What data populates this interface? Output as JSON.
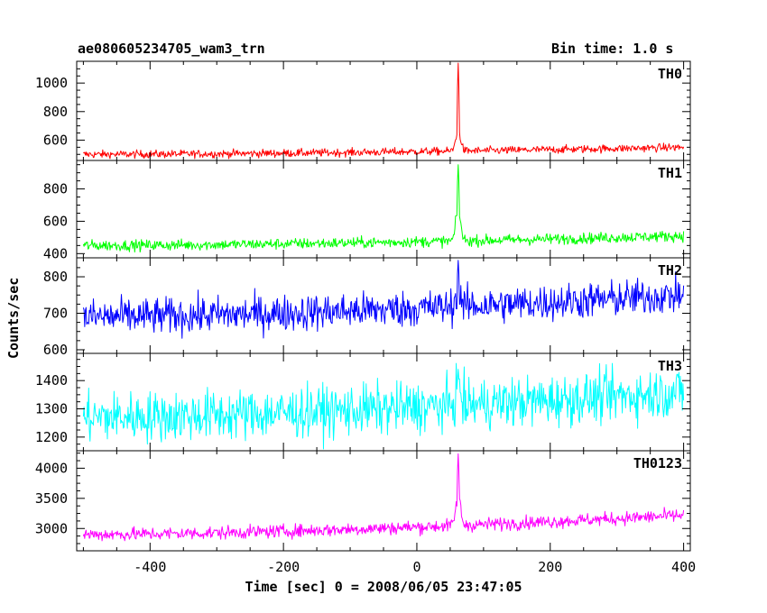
{
  "header": {
    "title": "ae080605234705_wam3_trn",
    "bin_time": "Bin time: 1.0 s"
  },
  "chart_data": {
    "type": "line",
    "xlabel": "Time [sec] 0 = 2008/06/05 23:47:05",
    "ylabel": "Counts/sec",
    "xlim": [
      -510,
      410
    ],
    "x_ticks": [
      -400,
      -200,
      0,
      200,
      400
    ],
    "x_range": [
      -500,
      400
    ],
    "burst_peak_time": 62,
    "panels": [
      {
        "name": "TH0",
        "color": "#ff0000",
        "ylim": [
          470,
          1140
        ],
        "y_ticks": [
          600,
          800,
          1000
        ],
        "baseline_start": 500,
        "baseline_end": 550,
        "noise": 14,
        "peak": 1140,
        "shoulder": 650
      },
      {
        "name": "TH1",
        "color": "#00ff00",
        "ylim": [
          385,
          965
        ],
        "y_ticks": [
          400,
          600,
          800
        ],
        "baseline_start": 450,
        "baseline_end": 510,
        "noise": 17,
        "peak": 950,
        "shoulder": 650
      },
      {
        "name": "TH2",
        "color": "#0000ff",
        "ylim": [
          595,
          847
        ],
        "y_ticks": [
          600,
          700,
          800
        ],
        "baseline_start": 690,
        "baseline_end": 750,
        "noise": 25,
        "peak": 845,
        "shoulder": 740
      },
      {
        "name": "TH3",
        "color": "#00ffff",
        "ylim": [
          1158,
          1490
        ],
        "y_ticks": [
          1200,
          1300,
          1400
        ],
        "baseline_start": 1270,
        "baseline_end": 1360,
        "noise": 45,
        "peak": 1440,
        "shoulder": 1340
      },
      {
        "name": "TH0123",
        "color": "#ff00ff",
        "ylim": [
          2660,
          4260
        ],
        "y_ticks": [
          3000,
          3500,
          4000
        ],
        "baseline_start": 2900,
        "baseline_end": 3220,
        "noise": 55,
        "peak": 4240,
        "shoulder": 3400
      }
    ]
  }
}
